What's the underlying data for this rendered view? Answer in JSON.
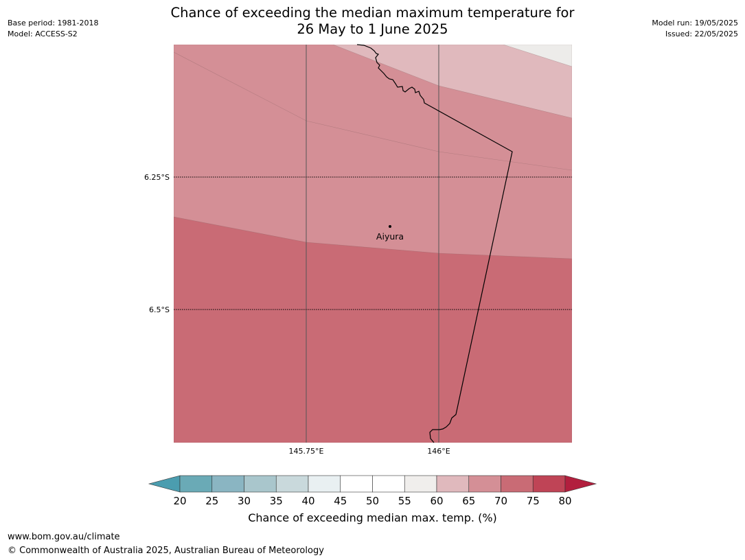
{
  "header": {
    "base_period": "Base period: 1981-2018",
    "model": "Model: ACCESS-S2",
    "title_line1": "Chance of exceeding the median maximum temperature for",
    "title_line2": "26 May to 1 June 2025",
    "model_run": "Model run: 19/05/2025",
    "issued": "Issued: 22/05/2025"
  },
  "map": {
    "place": {
      "name": "Aiyura"
    },
    "lat_labels": [
      "6.25°S",
      "6.5°S"
    ],
    "lon_labels": [
      "145.75°E",
      "146°E"
    ],
    "zones": [
      {
        "range": "55-60",
        "color": "#edecea"
      },
      {
        "range": "60-65",
        "color": "#e0b9bd"
      },
      {
        "range": "65-70",
        "color": "#d48f96"
      },
      {
        "range": "70-75",
        "color": "#c96b75"
      }
    ],
    "colors": {
      "coast": "#000000",
      "gridline": "#555555"
    }
  },
  "colorbar": {
    "ticks": [
      "20",
      "25",
      "30",
      "35",
      "40",
      "45",
      "50",
      "55",
      "60",
      "65",
      "70",
      "75",
      "80"
    ],
    "segment_colors": [
      "#6aaab6",
      "#8ab5c2",
      "#a9c6cc",
      "#c9d9dc",
      "#e9f0f2",
      "#ffffff",
      "#ffffff",
      "#f0eeec",
      "#e0b9bd",
      "#d48f96",
      "#c96b75",
      "#bf4456"
    ],
    "low_extend_color": "#4b9daf",
    "high_extend_color": "#b21f3e",
    "label": "Chance of exceeding median max. temp. (%)"
  },
  "footer": {
    "url": "www.bom.gov.au/climate",
    "copyright": "© Commonwealth of Australia 2025, Australian Bureau of Meteorology"
  }
}
